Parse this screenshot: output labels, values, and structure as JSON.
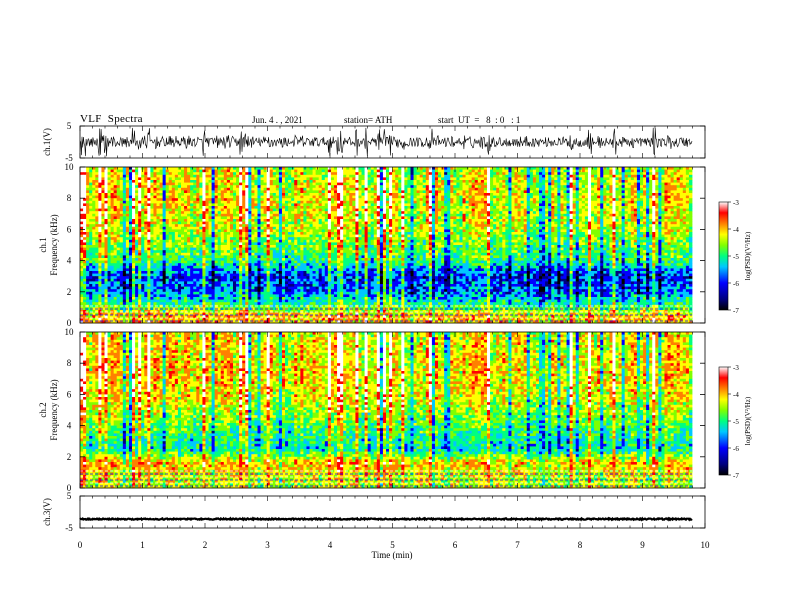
{
  "header": {
    "title": "VLF  Spectra",
    "date": "Jun. 4 . , 2021",
    "station": "station= ATH",
    "start": "start  UT  =   8  : 0   : 1"
  },
  "chart_data": [
    {
      "type": "line",
      "title": "",
      "ylabel": "ch.1(V)",
      "ylim": [
        -5,
        5
      ],
      "yticks": [
        "5",
        "-5"
      ],
      "xlim": [
        0,
        10
      ],
      "description_values": {
        "baseline": 0,
        "typical_amplitude": 1.5,
        "max_burst_amplitude": 5
      }
    },
    {
      "type": "heatmap",
      "ylabel_line1": "ch.1",
      "ylabel_line2": "Frequency (kHz)",
      "ylim": [
        0,
        10
      ],
      "yticks": [
        "0",
        "2",
        "4",
        "6",
        "8",
        "10"
      ],
      "xlim": [
        0,
        10
      ],
      "colorbar": {
        "label": "log(PSD)(V²/Hz)",
        "range": [
          -7,
          -3
        ],
        "ticks": [
          "-3",
          "-4",
          "-5",
          "-6",
          "-7"
        ]
      },
      "band_levels_khz": [
        {
          "f": 0.5,
          "level": -4.2
        },
        {
          "f": 1.0,
          "level": -5.0
        },
        {
          "f": 2.0,
          "level": -5.8
        },
        {
          "f": 3.0,
          "level": -6.0
        },
        {
          "f": 4.0,
          "level": -5.2
        },
        {
          "f": 6.0,
          "level": -4.6
        },
        {
          "f": 8.0,
          "level": -4.4
        },
        {
          "f": 10.0,
          "level": -4.6
        }
      ]
    },
    {
      "type": "heatmap",
      "ylabel_line1": "ch.2",
      "ylabel_line2": "Frequency (kHz)",
      "ylim": [
        0,
        10
      ],
      "yticks": [
        "0",
        "2",
        "4",
        "6",
        "8",
        "10"
      ],
      "xlim": [
        0,
        10
      ],
      "colorbar": {
        "label": "log(PSD)(V²/Hz)",
        "range": [
          -7,
          -3
        ],
        "ticks": [
          "-3",
          "-4",
          "-5",
          "-6",
          "-7"
        ]
      },
      "band_levels_khz": [
        {
          "f": 0.5,
          "level": -4.6
        },
        {
          "f": 1.6,
          "level": -4.2
        },
        {
          "f": 2.5,
          "level": -5.4
        },
        {
          "f": 4.0,
          "level": -5.0
        },
        {
          "f": 6.0,
          "level": -4.4
        },
        {
          "f": 8.0,
          "level": -4.3
        },
        {
          "f": 10.0,
          "level": -4.5
        }
      ]
    },
    {
      "type": "line",
      "ylabel": "ch.3(V)",
      "ylim": [
        -5,
        5
      ],
      "yticks": [
        "5",
        "-5"
      ],
      "xlim": [
        0,
        10
      ],
      "xlabel": "Time  (min)",
      "xticks": [
        "0",
        "1",
        "2",
        "3",
        "4",
        "5",
        "6",
        "7",
        "8",
        "9",
        "10"
      ],
      "description_values": {
        "baseline": -2.2,
        "typical_amplitude": 0.2
      }
    }
  ],
  "colors": {
    "colormap": [
      "#000000",
      "#00007f",
      "#0000ff",
      "#00c8ff",
      "#00ff80",
      "#80ff00",
      "#ffff00",
      "#ff8000",
      "#ff0000",
      "#ffffff"
    ],
    "trace": "#000000"
  }
}
